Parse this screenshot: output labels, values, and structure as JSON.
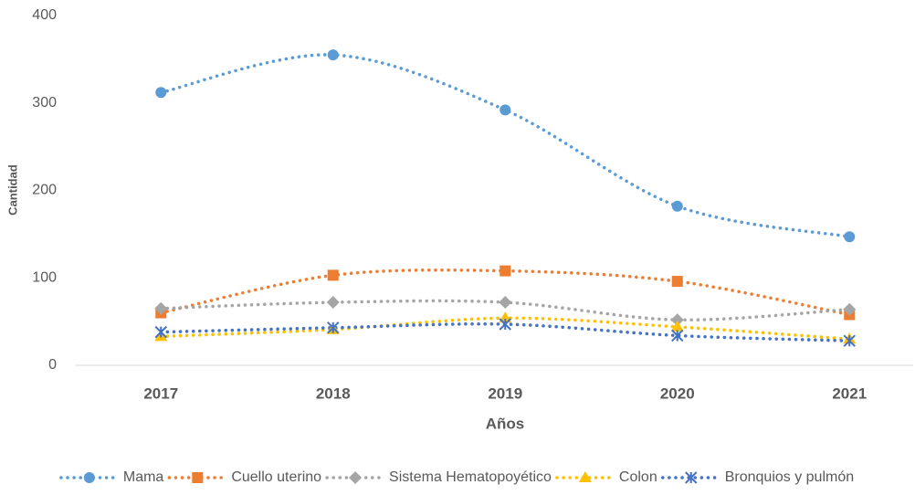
{
  "chart_data": {
    "type": "line",
    "x_label": "Años",
    "y_label": "Cantidad",
    "categories": [
      "2017",
      "2018",
      "2019",
      "2020",
      "2021"
    ],
    "series": [
      {
        "name": "Mama",
        "color": "#5b9bd5",
        "marker": "circle",
        "values": [
          312,
          355,
          292,
          182,
          147
        ]
      },
      {
        "name": "Cuello uterino",
        "color": "#ed7d31",
        "marker": "square",
        "values": [
          60,
          103,
          108,
          96,
          58
        ]
      },
      {
        "name": "Sistema Hematopoyético",
        "color": "#a5a5a5",
        "marker": "diamond",
        "values": [
          65,
          72,
          72,
          52,
          64
        ]
      },
      {
        "name": "Colon",
        "color": "#ffc000",
        "marker": "triangle",
        "values": [
          33,
          41,
          54,
          44,
          30
        ]
      },
      {
        "name": "Bronquios y pulmón",
        "color": "#4472c4",
        "marker": "star",
        "values": [
          38,
          43,
          47,
          34,
          28
        ]
      }
    ],
    "ylim": [
      0,
      400
    ],
    "yticks": [
      0,
      100,
      200,
      300,
      400
    ],
    "grid": false,
    "legend": "bottom"
  }
}
